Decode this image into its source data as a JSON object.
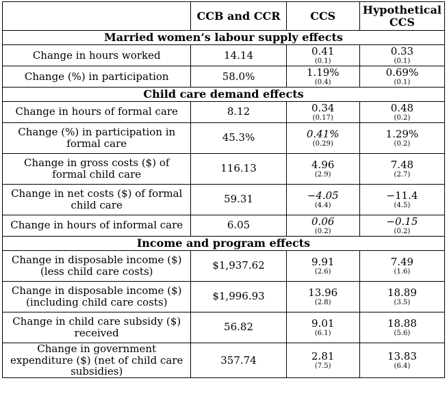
{
  "header": [
    "",
    "CCB and CCR",
    "CCS",
    "Hypothetical CCS"
  ],
  "sections": [
    {
      "title": "Married women’s labour supply effects",
      "rows": [
        {
          "label": "Change in hours worked",
          "ccb": "14.14",
          "ccs": {
            "v": "0.41",
            "se": "(0.1)",
            "italic": false
          },
          "hyp": {
            "v": "0.33",
            "se": "(0.1)",
            "italic": false
          }
        },
        {
          "label": "Change (%) in participation",
          "ccb": "58.0%",
          "ccs": {
            "v": "1.19%",
            "se": "(0.4)",
            "italic": false
          },
          "hyp": {
            "v": "0.69%",
            "se": "(0.1)",
            "italic": false
          }
        }
      ]
    },
    {
      "title": "Child care demand effects",
      "rows": [
        {
          "label": "Change in hours of formal care",
          "ccb": "8.12",
          "ccs": {
            "v": "0.34",
            "se": "(0.17)",
            "italic": false
          },
          "hyp": {
            "v": "0.48",
            "se": "(0.2)",
            "italic": false
          }
        },
        {
          "label": "Change (%) in participation in formal care",
          "ccb": "45.3%",
          "ccs": {
            "v": "0.41%",
            "se": "(0.29)",
            "italic": true
          },
          "hyp": {
            "v": "1.29%",
            "se": "(0.2)",
            "italic": false
          }
        },
        {
          "label": "Change in gross costs ($) of formal child care",
          "ccb": "116.13",
          "ccs": {
            "v": "4.96",
            "se": "(2.9)",
            "italic": false
          },
          "hyp": {
            "v": "7.48",
            "se": "(2.7)",
            "italic": false
          }
        },
        {
          "label": "Change in net costs ($) of formal child care",
          "ccb": "59.31",
          "ccs": {
            "v": "−4.05",
            "se": "(4.4)",
            "italic": true
          },
          "hyp": {
            "v": "−11.4",
            "se": "(4.5)",
            "italic": false
          }
        },
        {
          "label": "Change in hours of informal care",
          "ccb": "6.05",
          "ccs": {
            "v": "0.06",
            "se": "(0.2)",
            "italic": true
          },
          "hyp": {
            "v": "−0.15",
            "se": "(0.2)",
            "italic": true
          }
        }
      ]
    },
    {
      "title": "Income and program effects",
      "rows": [
        {
          "label": "Change in disposable income ($) (less child care costs)",
          "ccb": "$1,937.62",
          "ccs": {
            "v": "9.91",
            "se": "(2.6)",
            "italic": false
          },
          "hyp": {
            "v": "7.49",
            "se": "(1.6)",
            "italic": false
          }
        },
        {
          "label": "Change in disposable income ($) (including child care costs)",
          "ccb": "$1,996.93",
          "ccs": {
            "v": "13.96",
            "se": "(2.8)",
            "italic": false
          },
          "hyp": {
            "v": "18.89",
            "se": "(3.5)",
            "italic": false
          }
        },
        {
          "label": "Change in child care subsidy ($) received",
          "ccb": "56.82",
          "ccs": {
            "v": "9.01",
            "se": "(6.1)",
            "italic": false
          },
          "hyp": {
            "v": "18.88",
            "se": "(5.6)",
            "italic": false
          }
        },
        {
          "label": "Change in government expenditure ($) (net of child care subsidies)",
          "ccb": "357.74",
          "ccs": {
            "v": "2.81",
            "se": "(7.5)",
            "italic": false
          },
          "hyp": {
            "v": "13.83",
            "se": "(6.4)",
            "italic": false
          }
        }
      ]
    }
  ]
}
